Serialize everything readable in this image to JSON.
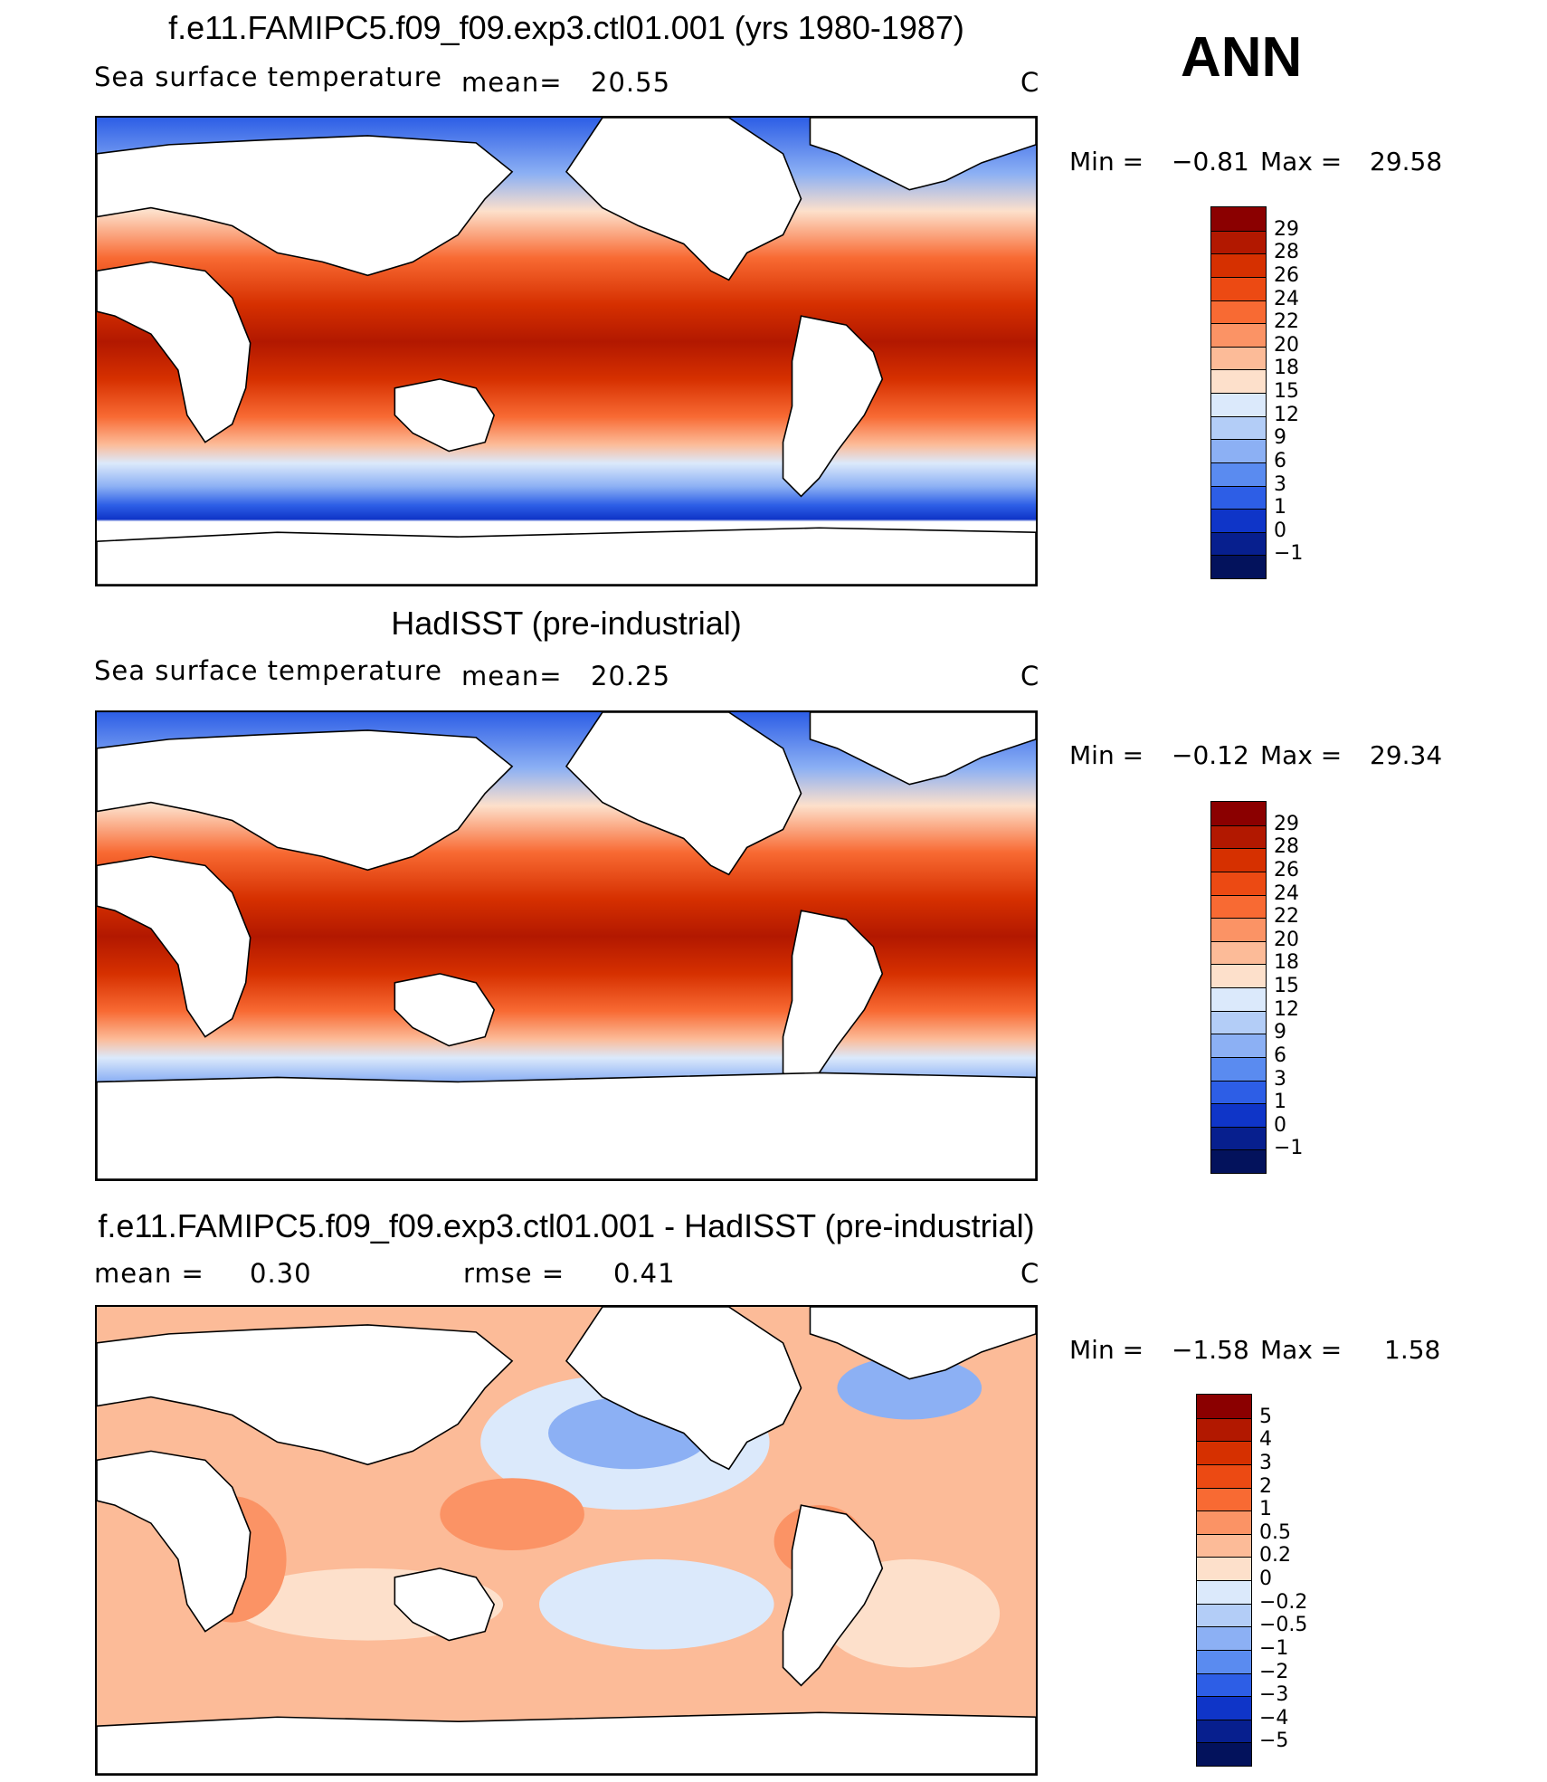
{
  "season": "ANN",
  "panels": [
    {
      "title": "f.e11.FAMIPC5.f09_f09.exp3.ctl01.001 (yrs 1980-1987)",
      "variable": "Sea surface temperature",
      "mean_label": "mean=",
      "mean_value": "20.55",
      "units": "C",
      "min_label": "Min =",
      "min_value": "−0.81",
      "max_label": "Max =",
      "max_value": "29.58",
      "colorbar": {
        "labels": [
          "29",
          "28",
          "26",
          "24",
          "22",
          "20",
          "18",
          "15",
          "12",
          "9",
          "6",
          "3",
          "1",
          "0",
          "−1"
        ],
        "colors": [
          "#8b0000",
          "#b21800",
          "#d63000",
          "#ec4a13",
          "#f86a33",
          "#fb9365",
          "#fcbb98",
          "#fde0cb",
          "#dbe9fb",
          "#b3cdf7",
          "#8cb0f4",
          "#5a8bf0",
          "#2d5ee6",
          "#0f35c8",
          "#071f8e",
          "#03125c"
        ]
      }
    },
    {
      "title": "HadISST (pre-industrial)",
      "variable": "Sea surface temperature",
      "mean_label": "mean=",
      "mean_value": "20.25",
      "units": "C",
      "min_label": "Min =",
      "min_value": "−0.12",
      "max_label": "Max =",
      "max_value": "29.34",
      "colorbar": {
        "labels": [
          "29",
          "28",
          "26",
          "24",
          "22",
          "20",
          "18",
          "15",
          "12",
          "9",
          "6",
          "3",
          "1",
          "0",
          "−1"
        ],
        "colors": [
          "#8b0000",
          "#b21800",
          "#d63000",
          "#ec4a13",
          "#f86a33",
          "#fb9365",
          "#fcbb98",
          "#fde0cb",
          "#dbe9fb",
          "#b3cdf7",
          "#8cb0f4",
          "#5a8bf0",
          "#2d5ee6",
          "#0f35c8",
          "#071f8e",
          "#03125c"
        ]
      }
    },
    {
      "title": "f.e11.FAMIPC5.f09_f09.exp3.ctl01.001 - HadISST (pre-industrial)",
      "mean_label": "mean =",
      "mean_value": "0.30",
      "rmse_label": "rmse =",
      "rmse_value": "0.41",
      "units": "C",
      "min_label": "Min =",
      "min_value": "−1.58",
      "max_label": "Max =",
      "max_value": "1.58",
      "colorbar": {
        "labels": [
          "5",
          "4",
          "3",
          "2",
          "1",
          "0.5",
          "0.2",
          "0",
          "−0.2",
          "−0.5",
          "−1",
          "−2",
          "−3",
          "−4",
          "−5"
        ],
        "colors": [
          "#8b0000",
          "#b21800",
          "#d63000",
          "#ec4a13",
          "#f86a33",
          "#fb9365",
          "#fcbb98",
          "#fde0cb",
          "#dbe9fb",
          "#b3cdf7",
          "#8cb0f4",
          "#5a8bf0",
          "#2d5ee6",
          "#0f35c8",
          "#071f8e",
          "#03125c"
        ]
      }
    }
  ]
}
